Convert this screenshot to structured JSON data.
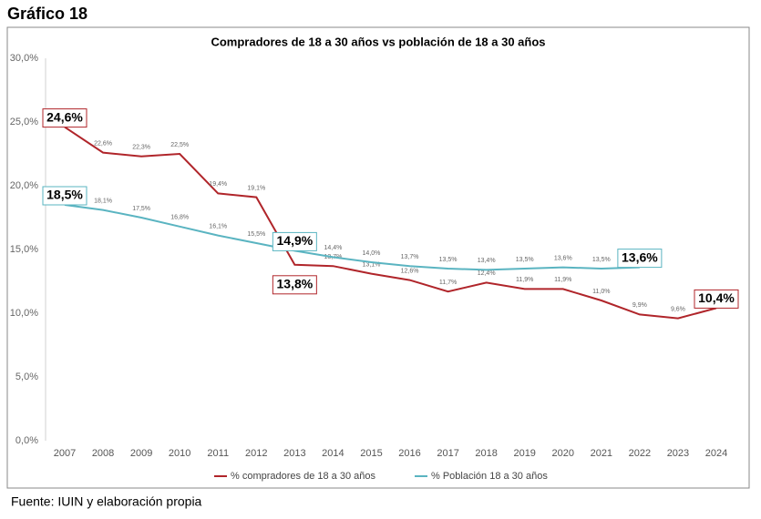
{
  "heading": "Gráfico 18",
  "source": "Fuente: IUIN y elaboración propia",
  "chart_data": {
    "type": "line",
    "title": "Compradores de 18 a 30 años vs población de 18 a 30 años",
    "categories": [
      "2007",
      "2008",
      "2009",
      "2010",
      "2011",
      "2012",
      "2013",
      "2014",
      "2015",
      "2016",
      "2017",
      "2018",
      "2019",
      "2020",
      "2021",
      "2022",
      "2023",
      "2024"
    ],
    "series": [
      {
        "name": "% compradores  de 18 a 30 años",
        "color": "#b0252a",
        "values": [
          24.6,
          22.6,
          22.3,
          22.5,
          19.4,
          19.1,
          13.8,
          13.7,
          13.1,
          12.6,
          11.7,
          12.4,
          11.9,
          11.9,
          11.0,
          9.9,
          9.6,
          10.4
        ],
        "value_labels": [
          "24,6%",
          "22,6%",
          "22,3%",
          "22,5%",
          "19,4%",
          "19,1%",
          "13,8%",
          "13,7%",
          "13,1%",
          "12,6%",
          "11,7%",
          "12,4%",
          "11,9%",
          "11,9%",
          "11,0%",
          "9,9%",
          "9,6%",
          "10,4%"
        ]
      },
      {
        "name": "% Población 18 a 30 años",
        "color": "#5ab4c1",
        "values": [
          18.5,
          18.1,
          17.5,
          16.8,
          16.1,
          15.5,
          14.9,
          14.4,
          14.0,
          13.7,
          13.5,
          13.4,
          13.5,
          13.6,
          13.5,
          13.6,
          null,
          null
        ],
        "value_labels": [
          "18,5%",
          "18,1%",
          "17,5%",
          "16,8%",
          "16,1%",
          "15,5%",
          "14,9%",
          "14,4%",
          "14,0%",
          "13,7%",
          "13,5%",
          "13,4%",
          "13,5%",
          "13,6%",
          "13,5%",
          "13,6%",
          null,
          null
        ]
      }
    ],
    "ylim": [
      0,
      30
    ],
    "yticks": [
      {
        "value": 0,
        "label": "0,0%"
      },
      {
        "value": 5,
        "label": "5,0%"
      },
      {
        "value": 10,
        "label": "10,0%"
      },
      {
        "value": 15,
        "label": "15,0%"
      },
      {
        "value": 20,
        "label": "20,0%"
      },
      {
        "value": 25,
        "label": "25,0%"
      },
      {
        "value": 30,
        "label": "30,0%"
      }
    ],
    "grid": false
  }
}
